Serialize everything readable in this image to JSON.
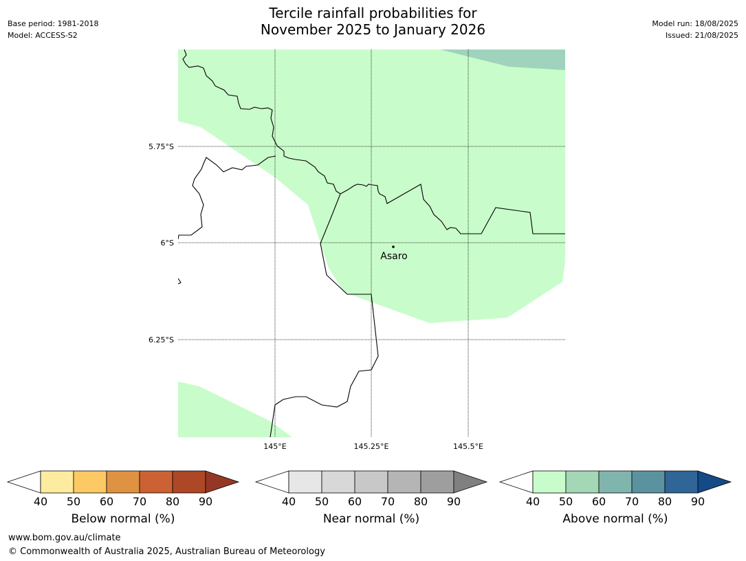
{
  "header": {
    "base_period": "Base period: 1981-2018",
    "model": "Model: ACCESS-S2",
    "title_line1": "Tercile rainfall probabilities for",
    "title_line2": "November 2025 to January 2026",
    "model_run": "Model run: 18/08/2025",
    "issued": "Issued: 21/08/2025"
  },
  "map": {
    "lat_labels": [
      "5.75°S",
      "6°S",
      "6.25°S"
    ],
    "lon_labels": [
      "145°E",
      "145.25°E",
      "145.5°E"
    ],
    "place": "Asaro",
    "colors": {
      "above_50": "#c9fccb",
      "above_60": "#9fd3bd",
      "background": "#ffffff"
    }
  },
  "colorbars": [
    {
      "label": "Below normal (%)",
      "ticks": [
        "40",
        "50",
        "60",
        "70",
        "80",
        "90"
      ],
      "colors": [
        "#fdeba0",
        "#fcc964",
        "#e09243",
        "#cc6233",
        "#ad4726",
        "#953725"
      ]
    },
    {
      "label": "Near normal (%)",
      "ticks": [
        "40",
        "50",
        "60",
        "70",
        "80",
        "90"
      ],
      "colors": [
        "#e7e7e7",
        "#d8d8d8",
        "#c8c8c8",
        "#b5b5b5",
        "#9e9e9e",
        "#808080"
      ]
    },
    {
      "label": "Above normal (%)",
      "ticks": [
        "40",
        "50",
        "60",
        "70",
        "80",
        "90"
      ],
      "colors": [
        "#c9fccb",
        "#a3d7b6",
        "#80b5ad",
        "#5b92a0",
        "#306597",
        "#144a86"
      ]
    }
  ],
  "footer": {
    "url": "www.bom.gov.au/climate",
    "copyright": "© Commonwealth of Australia 2025, Australian Bureau of Meteorology"
  }
}
